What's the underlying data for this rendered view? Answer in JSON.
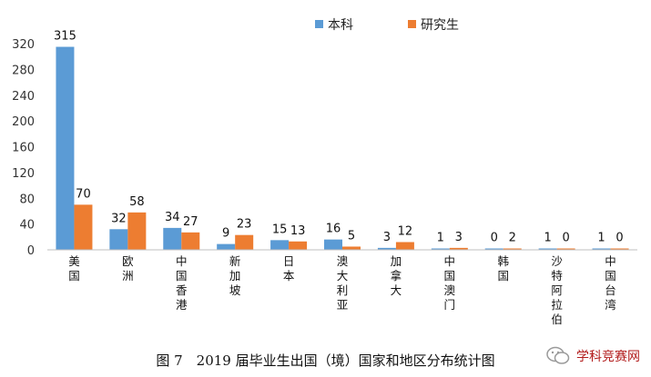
{
  "chart_data": {
    "type": "bar",
    "categories": [
      "美国",
      "欧洲",
      "中国香港",
      "新加坡",
      "日本",
      "澳大利亚",
      "加拿大",
      "中国澳门",
      "韩国",
      "沙特阿拉伯",
      "中国台湾"
    ],
    "series": [
      {
        "name": "本科",
        "color": "#5b9bd5",
        "values": [
          315,
          32,
          34,
          9,
          15,
          16,
          3,
          1,
          0,
          1,
          1
        ]
      },
      {
        "name": "研究生",
        "color": "#ed7d31",
        "values": [
          70,
          58,
          27,
          23,
          13,
          5,
          12,
          3,
          2,
          0,
          0
        ]
      }
    ],
    "yticks": [
      0,
      40,
      80,
      120,
      160,
      200,
      240,
      280,
      320
    ],
    "ylim": [
      0,
      320
    ],
    "legend_position": "top-right",
    "grid": false
  },
  "caption": "图 7　2019 届毕业生出国（境）国家和地区分布统计图",
  "watermark": {
    "text": "学科竞赛网",
    "icon": "wechat-icon"
  }
}
